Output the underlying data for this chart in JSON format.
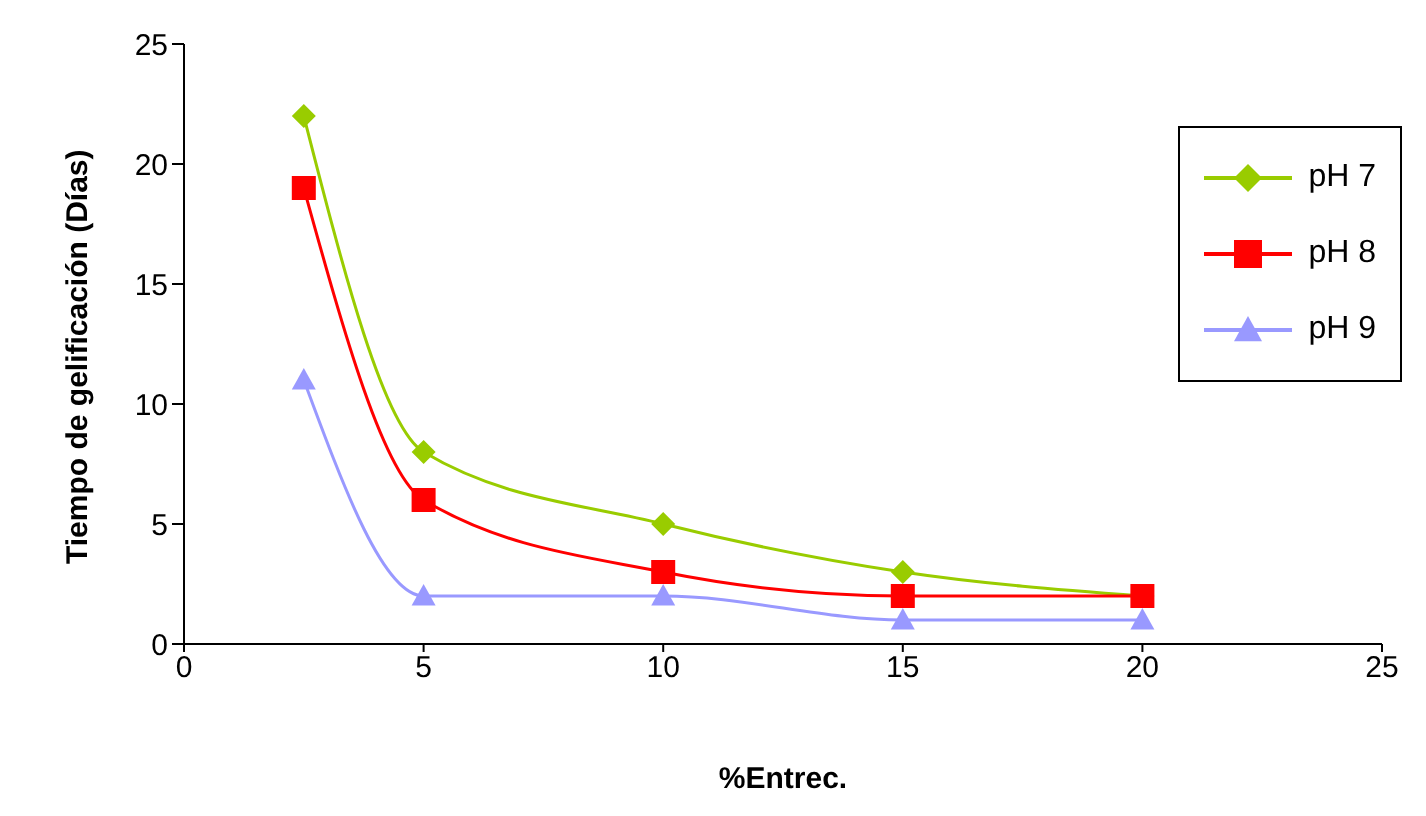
{
  "chart_data": {
    "type": "line",
    "xlabel": "%Entrec.",
    "ylabel": "Tiempo de gelificación (Días)",
    "x": [
      2.5,
      5,
      10,
      15,
      20
    ],
    "xlim": [
      0,
      25
    ],
    "xticks": [
      0,
      5,
      10,
      15,
      20,
      25
    ],
    "ylim": [
      0,
      25
    ],
    "yticks": [
      0,
      5,
      10,
      15,
      20,
      25
    ],
    "grid": false,
    "legend": "top right",
    "series": [
      {
        "name": "pH 7",
        "color": "#99cc00",
        "marker": "diamond",
        "values": [
          22,
          8,
          5,
          3,
          2
        ]
      },
      {
        "name": "pH 8",
        "color": "#ff0000",
        "marker": "square",
        "values": [
          19,
          6,
          3,
          2,
          2
        ]
      },
      {
        "name": "pH 9",
        "color": "#9999ff",
        "marker": "triangle",
        "values": [
          11,
          2,
          2,
          1,
          1
        ]
      }
    ]
  }
}
